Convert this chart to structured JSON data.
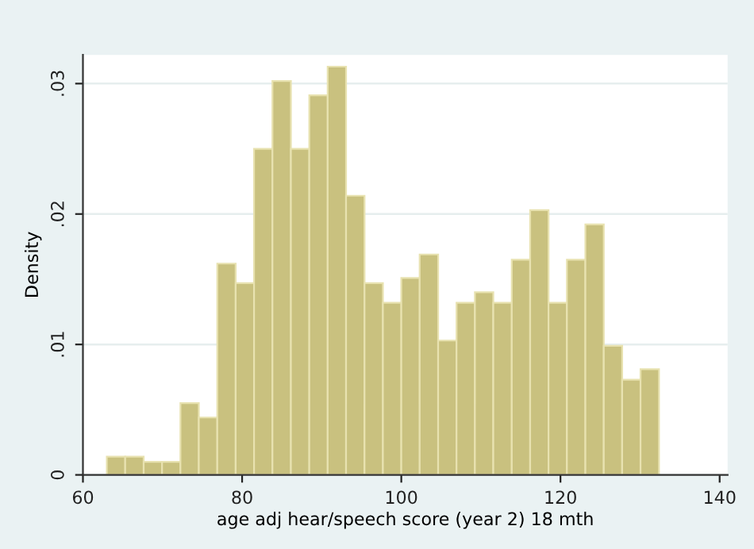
{
  "chart_data": {
    "type": "histogram",
    "xlabel": "age adj hear/speech score (year 2) 18 mth",
    "ylabel": "Density",
    "bins": [
      63.0,
      65.31,
      67.63,
      69.94,
      72.25,
      74.56,
      76.88,
      79.19,
      81.5,
      83.81,
      86.13,
      88.44,
      90.75,
      93.06,
      95.38,
      97.69,
      100.0,
      102.31,
      104.63,
      106.94,
      109.25,
      111.56,
      113.88,
      116.19,
      118.5,
      120.81,
      123.13,
      125.44,
      127.75,
      130.06,
      132.38
    ],
    "values": [
      0.0014,
      0.0014,
      0.001,
      0.001,
      0.0055,
      0.0044,
      0.0162,
      0.0147,
      0.025,
      0.0302,
      0.025,
      0.0291,
      0.0313,
      0.0214,
      0.0147,
      0.0132,
      0.0151,
      0.0169,
      0.0103,
      0.0132,
      0.014,
      0.0132,
      0.0165,
      0.0203,
      0.0132,
      0.0165,
      0.0192,
      0.0099,
      0.0073,
      0.0081
    ],
    "color": "#c9c17f",
    "xlim": [
      60,
      141
    ],
    "xticks": [
      60,
      80,
      100,
      120,
      140
    ],
    "ylim": [
      0,
      0.0322
    ],
    "yticks": [
      0,
      {
        "value": 0.01,
        "label": ".01"
      },
      {
        "value": 0.02,
        "label": ".02"
      },
      {
        "value": 0.03,
        "label": ".03"
      }
    ],
    "grid": "y",
    "legend": false
  }
}
